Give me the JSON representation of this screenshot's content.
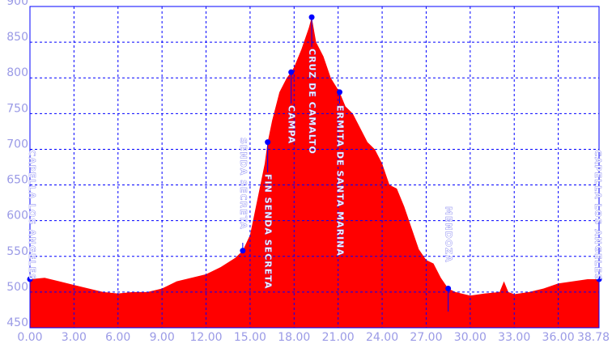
{
  "chart_data": {
    "type": "area",
    "color": "#ff0000",
    "grid": true,
    "x": [
      0,
      1,
      2,
      3,
      4,
      5,
      6,
      7,
      8,
      9,
      10,
      11,
      12,
      13,
      14,
      14.5,
      15,
      15.5,
      16,
      16.2,
      16.5,
      17,
      17.5,
      17.8,
      18,
      18.5,
      19,
      19.2,
      19.5,
      20,
      20.5,
      21.1,
      21.5,
      22,
      22.5,
      23,
      23.5,
      24,
      24.5,
      25,
      25.5,
      26,
      26.5,
      27,
      27.5,
      28,
      28.5,
      29,
      30,
      31,
      32,
      32.3,
      32.6,
      33,
      34,
      35,
      36,
      37,
      38,
      38.78
    ],
    "values": [
      518,
      520,
      515,
      510,
      505,
      500,
      498,
      500,
      500,
      505,
      515,
      520,
      525,
      535,
      548,
      558,
      580,
      630,
      680,
      710,
      740,
      780,
      800,
      808,
      815,
      840,
      870,
      885,
      850,
      830,
      800,
      780,
      760,
      750,
      730,
      710,
      700,
      680,
      650,
      645,
      620,
      590,
      560,
      545,
      540,
      520,
      505,
      500,
      495,
      498,
      500,
      515,
      500,
      497,
      500,
      505,
      512,
      515,
      518,
      518
    ],
    "xlim": [
      0,
      38.78
    ],
    "ylim": [
      450,
      900
    ],
    "xticks": [
      {
        "value": 0,
        "label": "0.00"
      },
      {
        "value": 3,
        "label": "3.00"
      },
      {
        "value": 6,
        "label": "6.00"
      },
      {
        "value": 9,
        "label": "9.00"
      },
      {
        "value": 12,
        "label": "12.00"
      },
      {
        "value": 15,
        "label": "15.00"
      },
      {
        "value": 18,
        "label": "18.00"
      },
      {
        "value": 21,
        "label": "21.00"
      },
      {
        "value": 24,
        "label": "24.00"
      },
      {
        "value": 27,
        "label": "27.00"
      },
      {
        "value": 30,
        "label": "30.00"
      },
      {
        "value": 33,
        "label": "33.00"
      },
      {
        "value": 36,
        "label": "36.00"
      },
      38.78
    ],
    "yticks": [
      450,
      500,
      550,
      600,
      650,
      700,
      750,
      800,
      850,
      900
    ],
    "waypoints": [
      {
        "name": "CAPELLA LOS ANGELES",
        "x": 0,
        "y": 518
      },
      {
        "name": "SENDA SECRETA",
        "x": 14.5,
        "y": 558
      },
      {
        "name": "FIN SENDA SECRETA",
        "x": 16.2,
        "y": 710
      },
      {
        "name": "CAMPA",
        "x": 17.8,
        "y": 808
      },
      {
        "name": "CRUZ DE CAMALTO",
        "x": 19.2,
        "y": 885
      },
      {
        "name": "ERMITA DE SANTA MARINA",
        "x": 21.1,
        "y": 780
      },
      {
        "name": "MENDOZA",
        "x": 28.5,
        "y": 505
      },
      {
        "name": "CAPELLA LOS ANGELES",
        "x": 38.78,
        "y": 518
      }
    ]
  }
}
